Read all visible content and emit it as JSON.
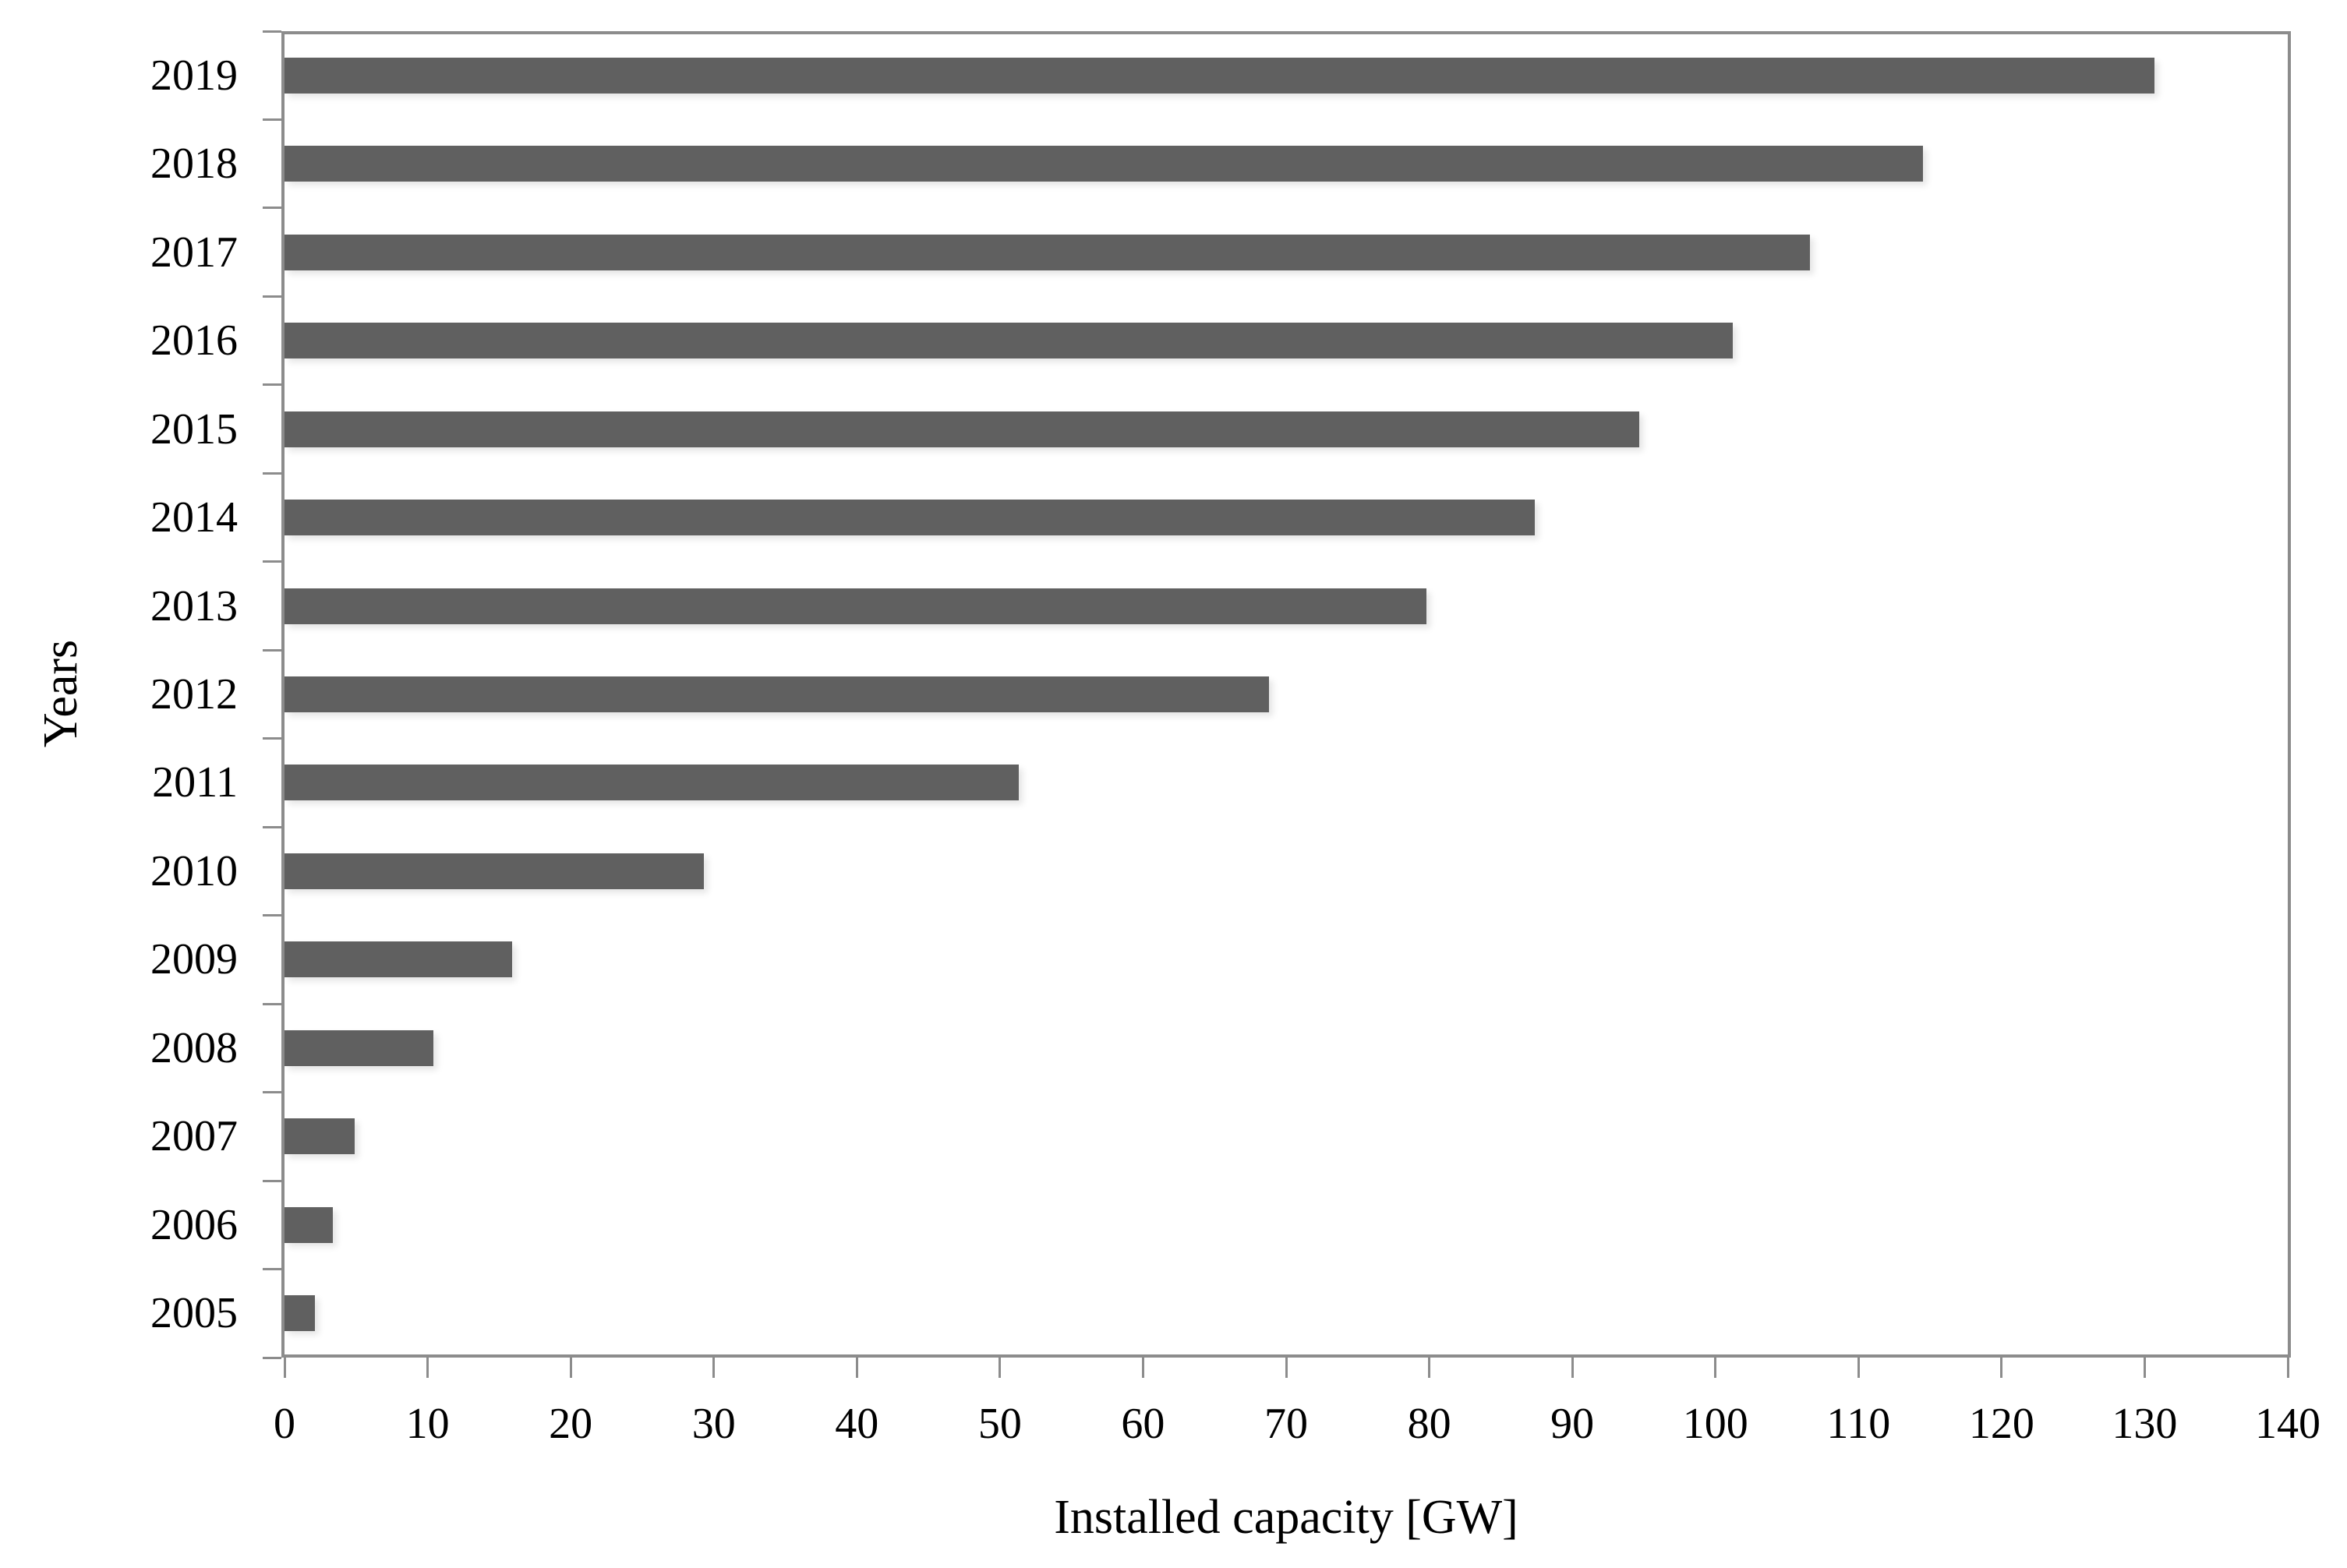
{
  "chart_data": {
    "type": "bar",
    "orientation": "horizontal",
    "title": "",
    "xlabel": "Installed capacity [GW]",
    "ylabel": "Years",
    "categories": [
      "2019",
      "2018",
      "2017",
      "2016",
      "2015",
      "2014",
      "2013",
      "2012",
      "2011",
      "2010",
      "2009",
      "2008",
      "2007",
      "2006",
      "2005"
    ],
    "values": [
      130.7,
      114.5,
      106.6,
      101.2,
      94.7,
      87.4,
      79.8,
      68.8,
      51.3,
      29.3,
      15.9,
      10.4,
      4.9,
      3.4,
      2.1
    ],
    "xlim": [
      0,
      140
    ],
    "xticks": [
      0,
      10,
      20,
      30,
      40,
      50,
      60,
      70,
      80,
      90,
      100,
      110,
      120,
      130,
      140
    ],
    "grid": "off",
    "legend": "none",
    "bar_color": "#606060",
    "axis_color": "#8c8c8c",
    "text_color": "#000000",
    "background_color": "#ffffff"
  }
}
